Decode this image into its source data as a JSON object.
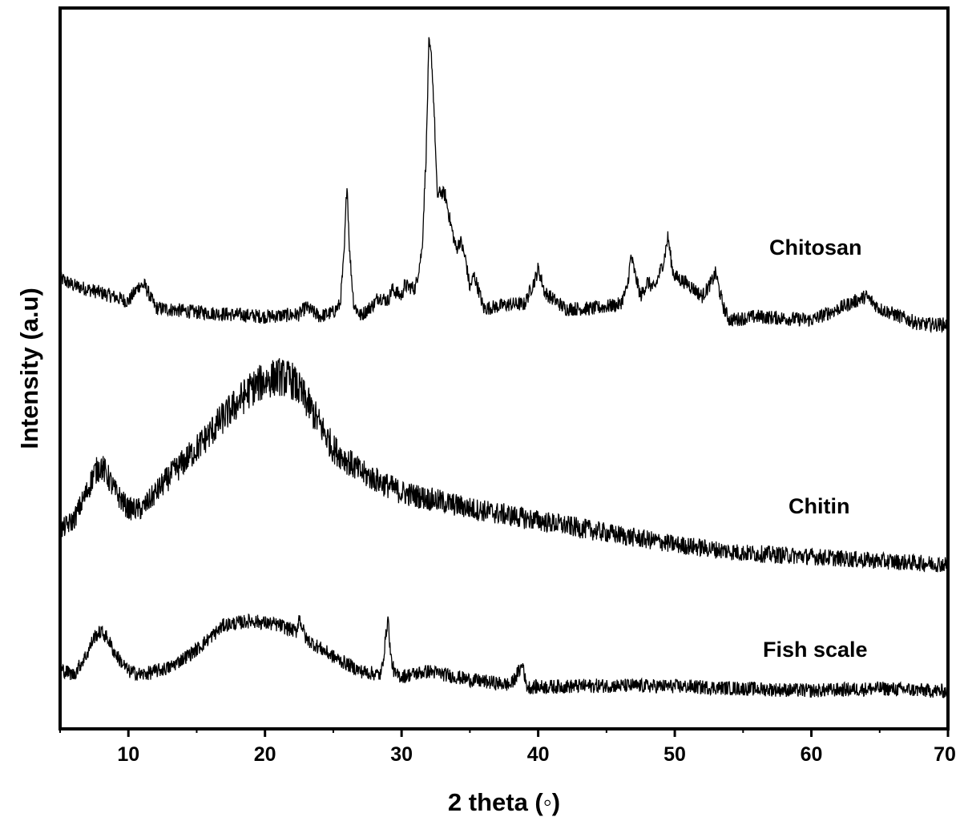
{
  "chart_data": {
    "type": "line",
    "title": "",
    "xlabel": "2 theta (◦)",
    "ylabel": "Intensity (a.u)",
    "xlim": [
      5,
      70
    ],
    "ylim": [
      0,
      100
    ],
    "x_ticks": [
      "10",
      "20",
      "30",
      "40",
      "50",
      "60",
      "70"
    ],
    "x_tick_values": [
      10,
      20,
      30,
      40,
      50,
      60,
      70
    ],
    "y_ticks": [],
    "grid": false,
    "legend": "none (labels placed beside each curve, right side)",
    "line_color": "#000000",
    "series": [
      {
        "name": "Chitosan",
        "x": [
          5,
          6,
          8,
          10,
          10.8,
          11.2,
          12,
          15,
          20,
          22.5,
          23,
          24,
          25,
          25.5,
          25.8,
          26,
          26.2,
          26.5,
          27,
          28,
          28.3,
          29,
          29.3,
          30,
          30.2,
          31,
          31.5,
          31.8,
          32,
          32.2,
          32.4,
          32.6,
          32.9,
          33.2,
          33.6,
          34,
          34.3,
          34.7,
          35,
          35.3,
          35.7,
          36,
          38,
          39,
          39.8,
          40,
          40.5,
          42,
          44,
          46,
          46.5,
          46.8,
          47.1,
          47.5,
          48,
          48.5,
          49.2,
          49.5,
          49.8,
          50,
          51,
          52,
          52.7,
          53,
          53.3,
          53.6,
          54,
          56,
          60,
          62,
          64,
          65,
          68,
          70
        ],
        "y": [
          62.5,
          61.5,
          60.5,
          59.3,
          61.5,
          61.5,
          58.4,
          57.8,
          57.2,
          57.5,
          58.5,
          57.2,
          57.8,
          58.9,
          66,
          76,
          66,
          58.9,
          57.3,
          59,
          60,
          59.4,
          61,
          60,
          61.5,
          61.1,
          66.5,
          80,
          95,
          93,
          85,
          74,
          74.5,
          74,
          70,
          66.5,
          67.8,
          65,
          61.1,
          63,
          60.5,
          58.3,
          58.9,
          58.9,
          62.5,
          63.9,
          60.5,
          58.3,
          58.3,
          58.9,
          61,
          65.6,
          63,
          60,
          62,
          61,
          65,
          68.3,
          64,
          62.8,
          61.7,
          60,
          62,
          63.3,
          60.5,
          58.3,
          56.7,
          57.2,
          56.7,
          58.3,
          60,
          58.3,
          56.1,
          56.1
        ]
      },
      {
        "name": "Chitin",
        "x": [
          5,
          6,
          7,
          7.5,
          8,
          8.5,
          9,
          10,
          11,
          13,
          15,
          17,
          19,
          20,
          21,
          22,
          23,
          25,
          27,
          30,
          35,
          40,
          45,
          50,
          55,
          60,
          65,
          70
        ],
        "y": [
          27.5,
          29,
          33,
          35.5,
          36.5,
          35,
          33,
          30.5,
          30.5,
          35,
          38.9,
          43.3,
          47.2,
          48.3,
          48.9,
          48.3,
          45.6,
          38.9,
          35.6,
          32.8,
          30.6,
          28.9,
          27.2,
          25.6,
          24.4,
          23.9,
          23.3,
          22.8
        ]
      },
      {
        "name": "Fish scale",
        "x": [
          5,
          6,
          7,
          7.5,
          8,
          8.5,
          9,
          10,
          11,
          13,
          15,
          17,
          19,
          21,
          22.3,
          22.5,
          23,
          25,
          27,
          28.5,
          28.8,
          29,
          29.2,
          29.5,
          30,
          32,
          35,
          38,
          38.9,
          39.1,
          39.3,
          45,
          50,
          55,
          60,
          65,
          70
        ],
        "y": [
          8.3,
          7.5,
          10.5,
          12.8,
          13.5,
          12.5,
          10.5,
          8,
          7.5,
          8.5,
          11,
          14.4,
          15,
          14.4,
          13.5,
          15.5,
          12.5,
          10,
          8,
          7.5,
          12,
          15.6,
          10,
          7.5,
          7.3,
          8,
          6.8,
          6.1,
          9,
          6.1,
          5.8,
          6,
          5.9,
          5.6,
          5.3,
          5.6,
          5.2
        ]
      }
    ]
  }
}
